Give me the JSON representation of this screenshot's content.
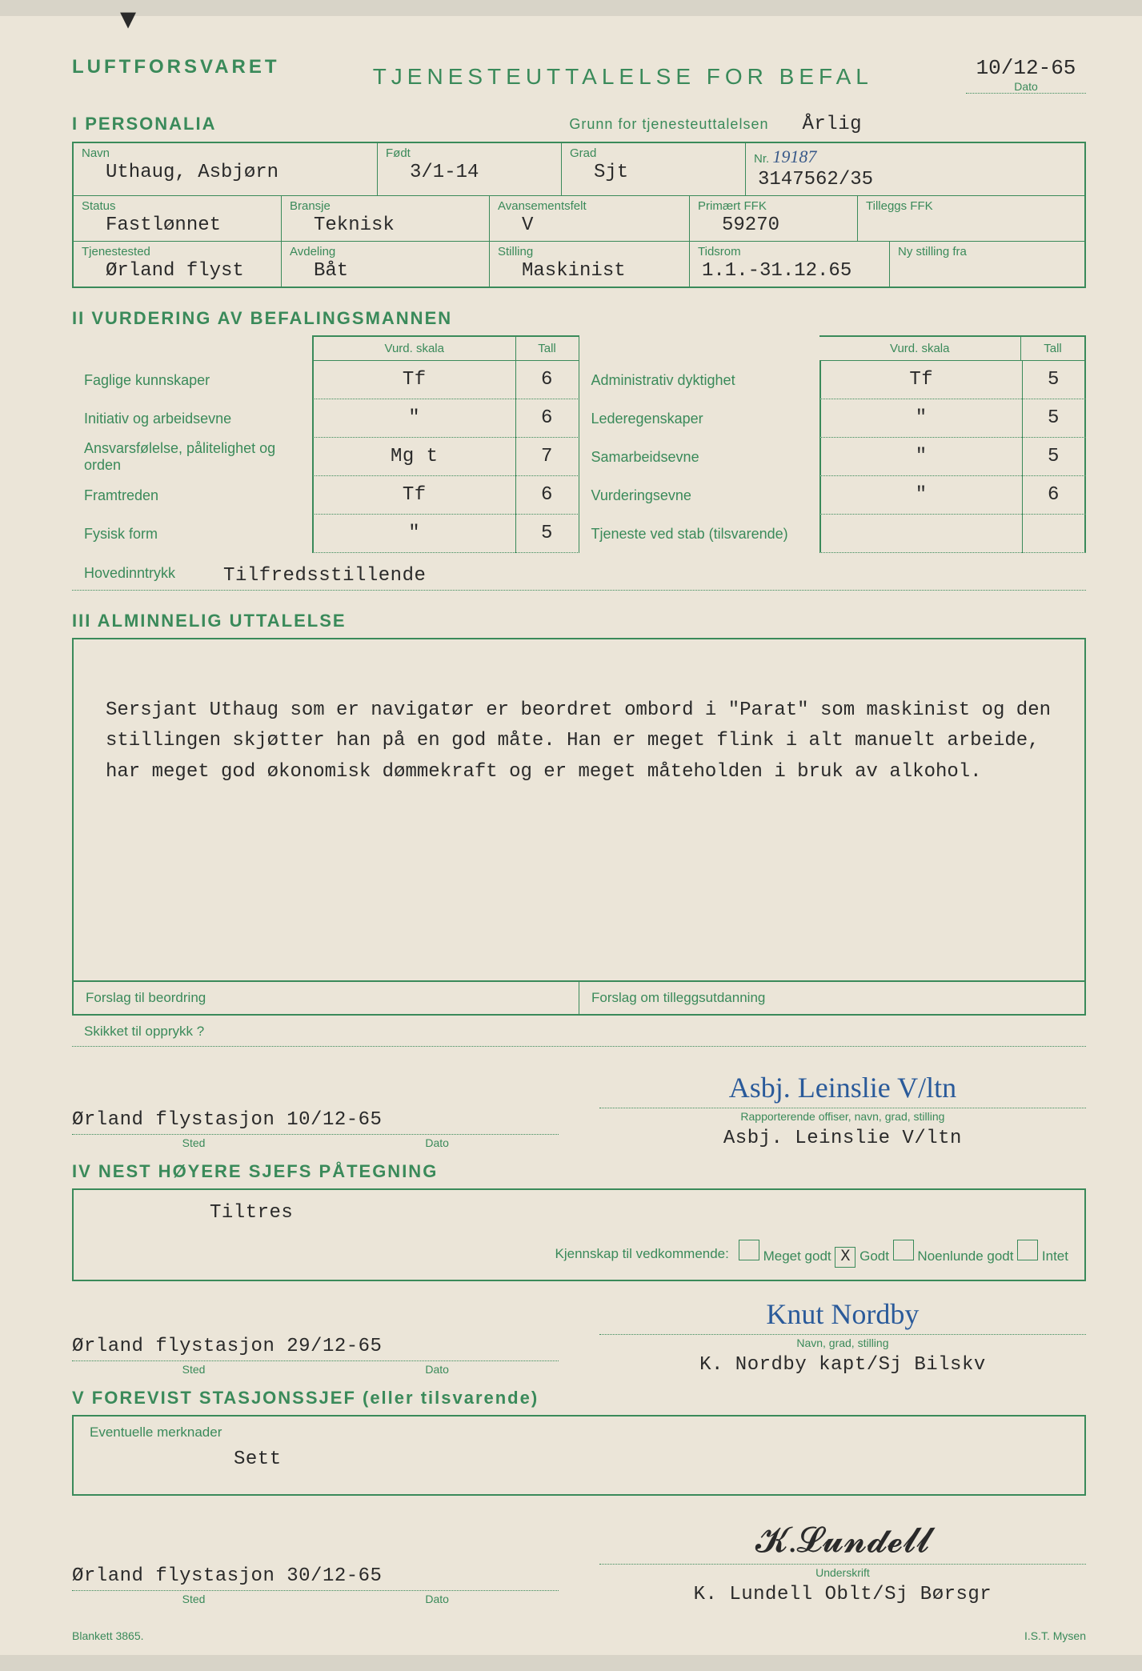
{
  "header": {
    "org": "LUFTFORSVARET",
    "title": "TJENESTEUTTALELSE FOR BEFAL",
    "date": "10/12-65",
    "date_label": "Dato"
  },
  "section1": {
    "hdr": "I  PERSONALIA",
    "grunn_lbl": "Grunn for tjenesteuttalelsen",
    "grunn_val": "Årlig",
    "navn_lbl": "Navn",
    "navn_val": "Uthaug, Asbjørn",
    "fodt_lbl": "Født",
    "fodt_val": "3/1-14",
    "grad_lbl": "Grad",
    "grad_val": "Sjt",
    "nr_lbl": "Nr.",
    "nr_hand": "19187",
    "nr_val": "3147562/35",
    "status_lbl": "Status",
    "status_val": "Fastlønnet",
    "bransje_lbl": "Bransje",
    "bransje_val": "Teknisk",
    "avfelt_lbl": "Avansementsfelt",
    "avfelt_val": "V",
    "prim_lbl": "Primært FFK",
    "prim_val": "59270",
    "till_lbl": "Tilleggs FFK",
    "till_val": "",
    "tjenested_lbl": "Tjenestested",
    "tjenested_val": "Ørland flyst",
    "avd_lbl": "Avdeling",
    "avd_val": "Båt",
    "stilling_lbl": "Stilling",
    "stilling_val": "Maskinist",
    "tidsrom_lbl": "Tidsrom",
    "tidsrom_val": "1.1.-31.12.65",
    "nystilling_lbl": "Ny stilling fra",
    "nystilling_val": ""
  },
  "section2": {
    "hdr": "II  VURDERING AV BEFALINGSMANNEN",
    "col_vurd": "Vurd. skala",
    "col_tall": "Tall",
    "left": [
      {
        "lbl": "Faglige kunnskaper",
        "skala": "Tf",
        "tall": "6"
      },
      {
        "lbl": "Initiativ og arbeidsevne",
        "skala": "\"",
        "tall": "6"
      },
      {
        "lbl": "Ansvarsfølelse, pålitelighet og orden",
        "skala": "Mg t",
        "tall": "7"
      },
      {
        "lbl": "Framtreden",
        "skala": "Tf",
        "tall": "6"
      },
      {
        "lbl": "Fysisk form",
        "skala": "\"",
        "tall": "5"
      }
    ],
    "right": [
      {
        "lbl": "Administrativ dyktighet",
        "skala": "Tf",
        "tall": "5"
      },
      {
        "lbl": "Lederegenskaper",
        "skala": "\"",
        "tall": "5"
      },
      {
        "lbl": "Samarbeidsevne",
        "skala": "\"",
        "tall": "5"
      },
      {
        "lbl": "Vurderingsevne",
        "skala": "\"",
        "tall": "6"
      },
      {
        "lbl": "Tjeneste ved stab (tilsvarende)",
        "skala": "",
        "tall": ""
      }
    ],
    "hoved_lbl": "Hovedinntrykk",
    "hoved_val": "Tilfredsstillende"
  },
  "section3": {
    "hdr": "III  ALMINNELIG UTTALELSE",
    "body": "Sersjant Uthaug  som er navigatør er beordret ombord i \"Parat\" som maskinist og den stillingen skjøtter han på en god måte.  Han er meget flink i alt manuelt arbeide, har meget god økonomisk dømmekraft og er meget måteholden i bruk av alkohol.",
    "forslag_beord": "Forslag til beordring",
    "forslag_till": "Forslag om tilleggsutdanning",
    "skikket": "Skikket til opprykk ?",
    "place_date": "Ørland flystasjon 10/12-65",
    "sted": "Sted",
    "dato": "Dato",
    "sig_script": "Asbj. Leinslie  V/ltn",
    "sig_lbl": "Rapporterende offiser, navn, grad, stilling",
    "sig_typed": "Asbj. Leinslie V/ltn"
  },
  "section4": {
    "hdr": "IV  NEST HØYERE SJEFS PÅTEGNING",
    "tiltres": "Tiltres",
    "kjenn_lbl": "Kjennskap til vedkommende:",
    "opts": [
      "Meget godt",
      "Godt",
      "Noenlunde godt",
      "Intet"
    ],
    "checked_idx": 1,
    "place_date": "Ørland flystasjon 29/12-65",
    "sted": "Sted",
    "dato": "Dato",
    "sig_script": "Knut Nordby",
    "sig_lbl": "Navn, grad, stilling",
    "sig_typed": "K. Nordby kapt/Sj Bilskv"
  },
  "section5": {
    "hdr": "V  FOREVIST STASJONSSJEF (eller tilsvarende)",
    "merk_lbl": "Eventuelle merknader",
    "merk_val": "Sett",
    "place_date": "Ørland flystasjon 30/12-65",
    "sted": "Sted",
    "dato": "Dato",
    "sig_lbl": "Underskrift",
    "sig_typed": "K. Lundell Oblt/Sj Børsgr"
  },
  "footer": {
    "left": "Blankett 3865.",
    "right": "I.S.T. Mysen"
  },
  "colors": {
    "form_green": "#3a8a5a",
    "paper": "#ebe5d8",
    "typed": "#2a2a2a",
    "ink_blue": "#2a5a9a"
  }
}
